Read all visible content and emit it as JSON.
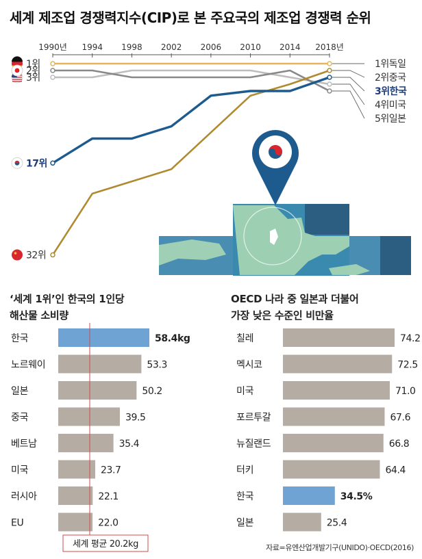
{
  "title": "세계 제조업 경쟁력지수(CIP)로 본 주요국의 제조업 경쟁력 순위",
  "source": "자료=유엔산업개발기구(UNIDO)·OECD(2016)",
  "chart_data": [
    {
      "type": "line",
      "x": [
        1990,
        1994,
        1998,
        2002,
        2006,
        2010,
        2014,
        2018
      ],
      "x_tick_labels": [
        "1990년",
        "1994",
        "1998",
        "2002",
        "2006",
        "2010",
        "2014",
        "2018년"
      ],
      "y_axis": "rank",
      "series": [
        {
          "name": "독일",
          "color": "#e4b55a",
          "values": [
            1,
            1,
            1,
            1,
            1,
            1,
            1,
            1
          ],
          "start_label": "1위",
          "end_label": "1위독일"
        },
        {
          "name": "중국",
          "color": "#b08a2e",
          "values": [
            32,
            22,
            20,
            18,
            12,
            6,
            4,
            2
          ],
          "start_label": "32위",
          "end_label": "2위중국"
        },
        {
          "name": "한국",
          "color": "#1d5a8e",
          "values": [
            17,
            13,
            13,
            11,
            6,
            5,
            5,
            3
          ],
          "start_label": "17위",
          "end_label": "3위한국",
          "highlight": true
        },
        {
          "name": "미국",
          "color": "#bdbdbd",
          "values": [
            3,
            3,
            2,
            2,
            2,
            2,
            3,
            4
          ],
          "start_label": "3위",
          "end_label": "4위미국"
        },
        {
          "name": "일본",
          "color": "#888888",
          "values": [
            2,
            2,
            3,
            3,
            3,
            3,
            2,
            5
          ],
          "start_label": "2위",
          "end_label": "5위일본"
        }
      ]
    },
    {
      "type": "bar",
      "orientation": "horizontal",
      "title_lines": [
        "‘세계 1위’인 한국의 1인당",
        "해산물 소비량"
      ],
      "categories": [
        "한국",
        "노르웨이",
        "일본",
        "중국",
        "베트남",
        "미국",
        "러시아",
        "EU"
      ],
      "values": [
        58.4,
        53.3,
        50.2,
        39.5,
        35.4,
        23.7,
        22.1,
        22.0
      ],
      "value_labels": [
        "58.4kg",
        "53.3",
        "50.2",
        "39.5",
        "35.4",
        "23.7",
        "22.1",
        "22.0"
      ],
      "highlight_index": 0,
      "reference_value": 20.2,
      "reference_label": "세계 평균 20.2kg",
      "colors": {
        "bar": "#b5aca3",
        "highlight": "#6fa3d4",
        "reference": "#d24b4b"
      }
    },
    {
      "type": "bar",
      "orientation": "horizontal",
      "title_lines": [
        "OECD 나라 중 일본과 더불어",
        "가장 낮은 수준인 비만율"
      ],
      "categories": [
        "칠레",
        "멕시코",
        "미국",
        "포르투갈",
        "뉴질랜드",
        "터키",
        "한국",
        "일본"
      ],
      "values": [
        74.2,
        72.5,
        71.0,
        67.6,
        66.8,
        64.4,
        34.5,
        25.4
      ],
      "value_labels": [
        "74.2",
        "72.5",
        "71.0",
        "67.6",
        "66.8",
        "64.4",
        "34.5%",
        "25.4"
      ],
      "highlight_index": 6,
      "colors": {
        "bar": "#b5aca3",
        "highlight": "#6fa3d4"
      }
    }
  ]
}
